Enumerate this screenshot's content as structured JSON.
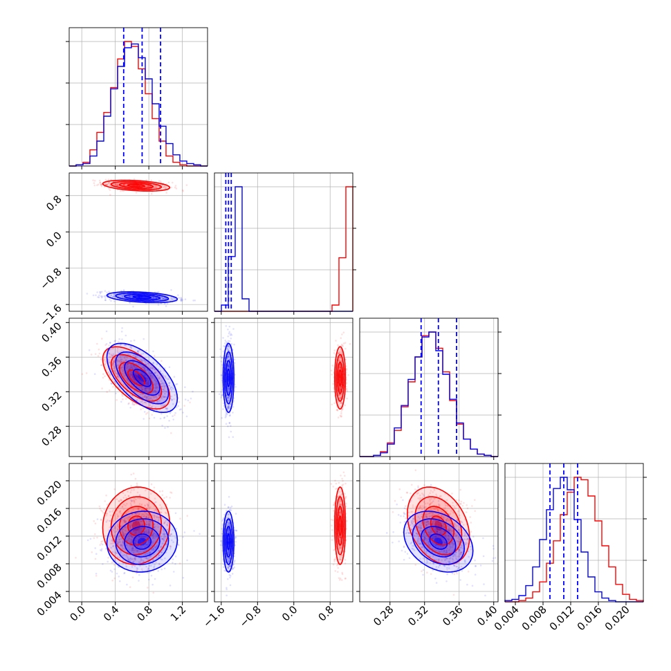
{
  "chart_data": {
    "type": "corner",
    "grid": true,
    "n_params": 4,
    "colors": {
      "red": "#ff0000",
      "blue": "#0000ff"
    },
    "params": [
      {
        "range": [
          -0.15,
          1.5
        ],
        "ticks": [
          0.0,
          0.4,
          0.8,
          1.2
        ],
        "tick_labels": [
          "0.0",
          "0.4",
          "0.8",
          "1.2"
        ],
        "quantiles_blue": [
          0.5,
          0.72,
          0.94
        ]
      },
      {
        "range": [
          -1.75,
          1.3
        ],
        "ticks": [
          -1.6,
          -0.8,
          0.0,
          0.8
        ],
        "tick_labels": [
          "−1.6",
          "−0.8",
          "0.0",
          "0.8"
        ],
        "quantiles_blue": [
          -1.5,
          -1.44,
          -1.38
        ]
      },
      {
        "range": [
          0.245,
          0.405
        ],
        "ticks": [
          0.28,
          0.32,
          0.36,
          0.4
        ],
        "tick_labels": [
          "0.28",
          "0.32",
          "0.36",
          "0.40"
        ],
        "quantiles_blue": [
          0.316,
          0.336,
          0.357
        ]
      },
      {
        "range": [
          0.0025,
          0.0225
        ],
        "ticks": [
          0.004,
          0.008,
          0.012,
          0.016,
          0.02
        ],
        "tick_labels": [
          "0.004",
          "0.008",
          "0.012",
          "0.016",
          "0.020"
        ],
        "quantiles_blue": [
          0.009,
          0.011,
          0.013
        ]
      }
    ],
    "series": [
      {
        "color": "#ff0000",
        "mean": [
          0.65,
          1.02,
          0.336,
          0.0135
        ],
        "sd": [
          0.2,
          0.06,
          0.018,
          0.0028
        ]
      },
      {
        "color": "#0000ff",
        "mean": [
          0.72,
          -1.44,
          0.336,
          0.0112
        ],
        "sd": [
          0.21,
          0.06,
          0.02,
          0.0022
        ]
      }
    ],
    "hist_red": [
      [
        0.0,
        0.01,
        0.03,
        0.13,
        0.27,
        0.43,
        0.63,
        0.86,
        1.0,
        0.96,
        0.78,
        0.58,
        0.38,
        0.2,
        0.08,
        0.03,
        0.01,
        0.0,
        0.0,
        0.0
      ],
      [
        0.0,
        0.0,
        0.0,
        0.0,
        0.0,
        0.0,
        0.0,
        0.0,
        0.0,
        0.0,
        0.0,
        0.0,
        0.0,
        0.0,
        0.0,
        0.0,
        0.0,
        0.05,
        0.43,
        1.0
      ],
      [
        0.0,
        0.0,
        0.01,
        0.04,
        0.11,
        0.21,
        0.4,
        0.6,
        0.8,
        0.97,
        1.0,
        0.87,
        0.68,
        0.45,
        0.26,
        0.14,
        0.06,
        0.02,
        0.01,
        0.0
      ],
      [
        0.0,
        0.0,
        0.01,
        0.03,
        0.08,
        0.16,
        0.31,
        0.49,
        0.7,
        0.88,
        1.0,
        0.98,
        0.85,
        0.65,
        0.45,
        0.28,
        0.14,
        0.06,
        0.02,
        0.01
      ]
    ],
    "hist_blue": [
      [
        0.0,
        0.01,
        0.02,
        0.08,
        0.2,
        0.4,
        0.62,
        0.8,
        0.95,
        0.98,
        0.87,
        0.7,
        0.5,
        0.32,
        0.18,
        0.09,
        0.04,
        0.02,
        0.01,
        0.0
      ],
      [
        0.0,
        0.05,
        0.44,
        1.0,
        0.1,
        0.0,
        0.0,
        0.0,
        0.0,
        0.0,
        0.0,
        0.0,
        0.0,
        0.0,
        0.0,
        0.0,
        0.0,
        0.0,
        0.0,
        0.0
      ],
      [
        0.0,
        0.0,
        0.01,
        0.03,
        0.1,
        0.23,
        0.41,
        0.62,
        0.8,
        0.96,
        1.0,
        0.85,
        0.66,
        0.46,
        0.27,
        0.14,
        0.06,
        0.02,
        0.01,
        0.0
      ],
      [
        0.01,
        0.02,
        0.05,
        0.13,
        0.28,
        0.5,
        0.74,
        0.91,
        1.0,
        0.9,
        0.66,
        0.4,
        0.2,
        0.08,
        0.03,
        0.01,
        0.0,
        0.0,
        0.0,
        0.0
      ]
    ]
  }
}
